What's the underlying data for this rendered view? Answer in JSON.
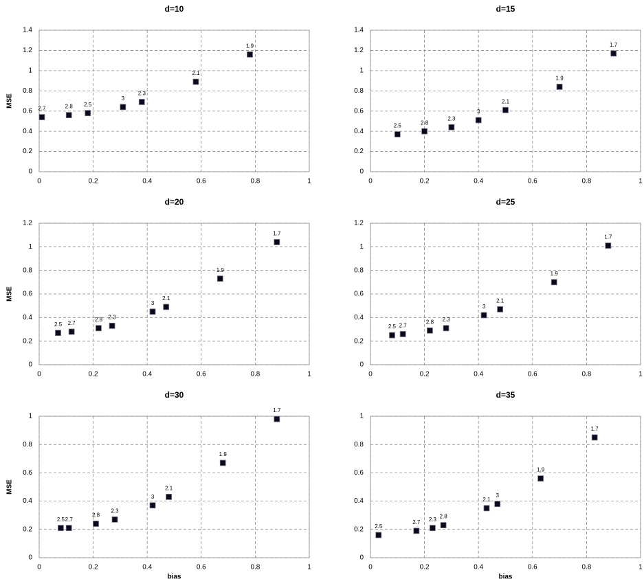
{
  "chart_data": [
    {
      "type": "scatter",
      "title": "d=10",
      "ylabel": "MSE",
      "color": "#0a0a1e",
      "x": [
        0.01,
        0.11,
        0.18,
        0.31,
        0.38,
        0.58,
        0.78
      ],
      "values": [
        0.54,
        0.56,
        0.58,
        0.64,
        0.69,
        0.89,
        1.16
      ],
      "labels": [
        "2.7",
        "2.8",
        "2.5",
        "3",
        "2.3",
        "2.1",
        "1.9"
      ],
      "xlim": [
        0,
        1
      ],
      "xticks": [
        0,
        0.2,
        0.4,
        0.6,
        0.8,
        1
      ],
      "ylim": [
        0,
        1.4
      ],
      "yticks": [
        0,
        0.2,
        0.4,
        0.6,
        0.8,
        1,
        1.2,
        1.4
      ],
      "grid": true
    },
    {
      "type": "scatter",
      "title": "d=15",
      "color": "#0a0a1e",
      "x": [
        0.1,
        0.2,
        0.3,
        0.4,
        0.5,
        0.7,
        0.9
      ],
      "values": [
        0.37,
        0.4,
        0.44,
        0.51,
        0.61,
        0.84,
        1.17
      ],
      "labels": [
        "2.5",
        "2.8",
        "2.3",
        "3",
        "2.1",
        "1.9",
        "1.7"
      ],
      "xlim": [
        0,
        1
      ],
      "xticks": [
        0,
        0.2,
        0.4,
        0.6,
        0.8,
        1
      ],
      "ylim": [
        0,
        1.4
      ],
      "yticks": [
        0,
        0.2,
        0.4,
        0.6,
        0.8,
        1,
        1.2,
        1.4
      ],
      "grid": true
    },
    {
      "type": "scatter",
      "title": "d=20",
      "ylabel": "MSE",
      "color": "#0a0a1e",
      "x": [
        0.07,
        0.12,
        0.22,
        0.27,
        0.42,
        0.47,
        0.67,
        0.88
      ],
      "values": [
        0.27,
        0.28,
        0.31,
        0.33,
        0.45,
        0.49,
        0.73,
        1.04
      ],
      "labels": [
        "2.5",
        "2.7",
        "2.8",
        "2.3",
        "3",
        "2.1",
        "1.9",
        "1.7"
      ],
      "xlim": [
        0,
        1
      ],
      "xticks": [
        0,
        0.2,
        0.4,
        0.6,
        0.8,
        1
      ],
      "ylim": [
        0,
        1.2
      ],
      "yticks": [
        0,
        0.2,
        0.4,
        0.6,
        0.8,
        1,
        1.2
      ],
      "grid": true
    },
    {
      "type": "scatter",
      "title": "d=25",
      "color": "#0a0a1e",
      "x": [
        0.08,
        0.12,
        0.22,
        0.28,
        0.42,
        0.48,
        0.68,
        0.88
      ],
      "values": [
        0.25,
        0.26,
        0.29,
        0.31,
        0.42,
        0.47,
        0.7,
        1.01
      ],
      "labels": [
        "2.5",
        "2.7",
        "2.8",
        "2.3",
        "3",
        "2.1",
        "1.9",
        "1.7"
      ],
      "xlim": [
        0,
        1
      ],
      "xticks": [
        0,
        0.2,
        0.4,
        0.6,
        0.8,
        1
      ],
      "ylim": [
        0,
        1.2
      ],
      "yticks": [
        0,
        0.2,
        0.4,
        0.6,
        0.8,
        1,
        1.2
      ],
      "grid": true
    },
    {
      "type": "scatter",
      "title": "d=30",
      "ylabel": "MSE",
      "xlabel": "bias",
      "color": "#0a0a1e",
      "x": [
        0.08,
        0.11,
        0.21,
        0.28,
        0.42,
        0.48,
        0.68,
        0.88
      ],
      "values": [
        0.21,
        0.21,
        0.24,
        0.27,
        0.37,
        0.43,
        0.67,
        0.98
      ],
      "labels": [
        "2.5",
        "2.7",
        "2.8",
        "2.3",
        "3",
        "2.1",
        "1.9",
        "1.7"
      ],
      "xlim": [
        0,
        1
      ],
      "xticks": [
        0,
        0.2,
        0.4,
        0.6,
        0.8,
        1
      ],
      "ylim": [
        0,
        1
      ],
      "yticks": [
        0,
        0.2,
        0.4,
        0.6,
        0.8,
        1
      ],
      "grid": true
    },
    {
      "type": "scatter",
      "title": "d=35",
      "xlabel": "bias",
      "color": "#0a0a1e",
      "x": [
        0.03,
        0.17,
        0.23,
        0.27,
        0.43,
        0.47,
        0.63,
        0.83
      ],
      "values": [
        0.16,
        0.19,
        0.21,
        0.23,
        0.35,
        0.38,
        0.56,
        0.85
      ],
      "labels": [
        "2.5",
        "2.7",
        "2.3",
        "2.8",
        "2.1",
        "3",
        "1.9",
        "1.7"
      ],
      "xlim": [
        0,
        1
      ],
      "xticks": [
        0,
        0.2,
        0.4,
        0.6,
        0.8,
        1
      ],
      "ylim": [
        0,
        1
      ],
      "yticks": [
        0,
        0.2,
        0.4,
        0.6,
        0.8,
        1
      ],
      "grid": true
    }
  ]
}
